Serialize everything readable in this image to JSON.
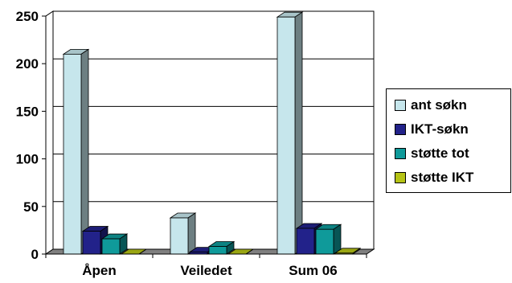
{
  "chart_data": {
    "type": "bar",
    "categories": [
      "Åpen",
      "Veiledet",
      "Sum 06"
    ],
    "series": [
      {
        "name": "ant søkn",
        "values": [
          210,
          38,
          249
        ],
        "color": "#c6e6ec"
      },
      {
        "name": "IKT-søkn",
        "values": [
          24,
          2,
          27
        ],
        "color": "#22228a"
      },
      {
        "name": "støtte tot",
        "values": [
          16,
          8,
          26
        ],
        "color": "#0f9a9a"
      },
      {
        "name": "støtte IKT",
        "values": [
          0,
          0,
          1
        ],
        "color": "#b5c316"
      }
    ],
    "ylim": [
      0,
      250
    ],
    "yticks": [
      "0",
      "50",
      "100",
      "150",
      "200",
      "250"
    ],
    "grid": true,
    "legend_position": "right",
    "title": "",
    "xlabel": "",
    "ylabel": ""
  }
}
